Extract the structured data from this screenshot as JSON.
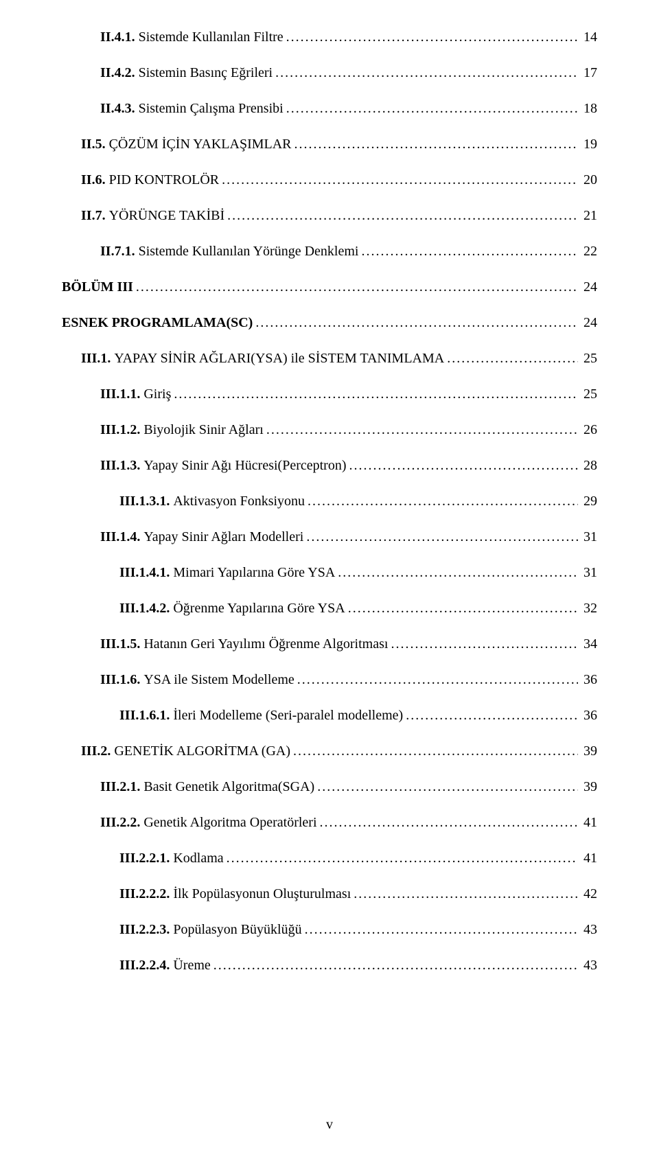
{
  "folio": "v",
  "toc": [
    {
      "indent": 2,
      "style": "partial-bold",
      "label": "II.4.1. ",
      "text": "Sistemde Kullanılan Filtre",
      "page": "14"
    },
    {
      "indent": 2,
      "style": "partial-bold",
      "label": "II.4.2. ",
      "text": "Sistemin Basınç Eğrileri",
      "page": "17"
    },
    {
      "indent": 2,
      "style": "partial-bold",
      "label": "II.4.3. ",
      "text": "Sistemin Çalışma Prensibi",
      "page": "18"
    },
    {
      "indent": 1,
      "style": "partial-bold",
      "label": "II.5. ",
      "text": "ÇÖZÜM İÇİN YAKLAŞIMLAR",
      "page": "19"
    },
    {
      "indent": 1,
      "style": "partial-bold",
      "label": "II.6. ",
      "text": "PID KONTROLÖR",
      "page": "20"
    },
    {
      "indent": 1,
      "style": "partial-bold",
      "label": "II.7. ",
      "text": "YÖRÜNGE TAKİBİ",
      "page": "21"
    },
    {
      "indent": 2,
      "style": "partial-bold",
      "label": "II.7.1. ",
      "text": "Sistemde Kullanılan Yörünge Denklemi",
      "page": "22"
    },
    {
      "indent": 0,
      "style": "bold",
      "label": "BÖLÜM III",
      "text": "",
      "page": "24"
    },
    {
      "indent": 0,
      "style": "bold",
      "label": "ESNEK PROGRAMLAMA(SC)",
      "text": "",
      "page": "24"
    },
    {
      "indent": 1,
      "style": "partial-bold",
      "label": "III.1. ",
      "text": "YAPAY SİNİR AĞLARI(YSA) ile SİSTEM TANIMLAMA",
      "page": "25"
    },
    {
      "indent": 2,
      "style": "partial-bold",
      "label": "III.1.1. ",
      "text": "Giriş",
      "page": "25"
    },
    {
      "indent": 2,
      "style": "partial-bold",
      "label": "III.1.2. ",
      "text": "Biyolojik Sinir Ağları",
      "page": "26"
    },
    {
      "indent": 2,
      "style": "partial-bold",
      "label": "III.1.3. ",
      "text": "Yapay Sinir Ağı Hücresi(Perceptron)",
      "page": "28"
    },
    {
      "indent": 3,
      "style": "partial-bold",
      "label": "III.1.3.1. ",
      "text": "Aktivasyon Fonksiyonu",
      "page": "29"
    },
    {
      "indent": 2,
      "style": "partial-bold",
      "label": "III.1.4. ",
      "text": "Yapay Sinir Ağları Modelleri",
      "page": "31"
    },
    {
      "indent": 3,
      "style": "partial-bold",
      "label": "III.1.4.1. ",
      "text": "Mimari Yapılarına Göre YSA",
      "page": "31"
    },
    {
      "indent": 3,
      "style": "partial-bold",
      "label": "III.1.4.2. ",
      "text": "Öğrenme Yapılarına Göre YSA",
      "page": "32"
    },
    {
      "indent": 2,
      "style": "partial-bold",
      "label": "III.1.5. ",
      "text": "Hatanın Geri Yayılımı Öğrenme Algoritması",
      "page": "34"
    },
    {
      "indent": 2,
      "style": "partial-bold",
      "label": "III.1.6. ",
      "text": "YSA ile Sistem Modelleme",
      "page": "36"
    },
    {
      "indent": 3,
      "style": "partial-bold",
      "label": "III.1.6.1. ",
      "text": "İleri Modelleme (Seri-paralel modelleme)",
      "page": "36"
    },
    {
      "indent": 1,
      "style": "partial-bold",
      "label": "III.2. ",
      "text": "GENETİK ALGORİTMA (GA)",
      "page": "39"
    },
    {
      "indent": 2,
      "style": "partial-bold",
      "label": "III.2.1. ",
      "text": "Basit Genetik Algoritma(SGA)",
      "page": "39"
    },
    {
      "indent": 2,
      "style": "partial-bold",
      "label": "III.2.2. ",
      "text": "Genetik Algoritma Operatörleri",
      "page": "41"
    },
    {
      "indent": 3,
      "style": "partial-bold",
      "label": "III.2.2.1. ",
      "text": "Kodlama",
      "page": "41"
    },
    {
      "indent": 3,
      "style": "partial-bold",
      "label": "III.2.2.2. ",
      "text": "İlk Popülasyonun Oluşturulması",
      "page": "42"
    },
    {
      "indent": 3,
      "style": "partial-bold",
      "label": "III.2.2.3. ",
      "text": "Popülasyon Büyüklüğü",
      "page": "43"
    },
    {
      "indent": 3,
      "style": "partial-bold",
      "label": "III.2.2.4. ",
      "text": "Üreme",
      "page": "43"
    }
  ]
}
